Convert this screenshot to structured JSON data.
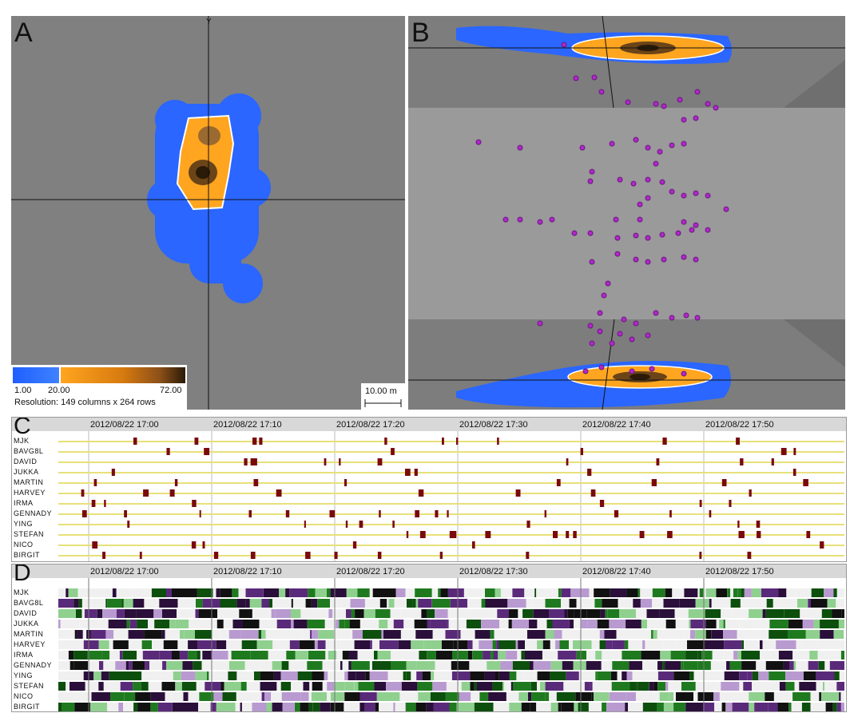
{
  "panels": {
    "a": {
      "label": "A",
      "axis_y": "Y"
    },
    "b": {
      "label": "B"
    },
    "c": {
      "label": "C"
    },
    "d": {
      "label": "D"
    }
  },
  "colorbar": {
    "min_label": "1.00",
    "mid_label": "20.00",
    "max_label": "72.00",
    "resolution": "Resolution: 149 columns x 264 rows",
    "colors": {
      "low": "#1f5fff",
      "mid": "#ff9f1a",
      "high": "#2a1a08"
    }
  },
  "scale_bar": {
    "label": "10.00 m"
  },
  "timeline": {
    "ticks": [
      "2012/08/22 17:00",
      "2012/08/22 17:10",
      "2012/08/22 17:20",
      "2012/08/22 17:30",
      "2012/08/22 17:40",
      "2012/08/22 17:50"
    ],
    "names_c": [
      "MJK",
      "BAVG8L",
      "DAVID",
      "JUKKA",
      "MARTIN",
      "HARVEY",
      "IRMA",
      "GENNADY",
      "YING",
      "STEFAN",
      "NICO",
      "BIRGIT"
    ],
    "names_d": [
      "MJK",
      "BAVG8L",
      "DAVID",
      "JUKKA",
      "MARTIN",
      "HARVEY",
      "IRMA",
      "GENNADY",
      "YING",
      "STEFAN",
      "NICO",
      "BIRGIT"
    ],
    "colors": {
      "event": "#7a0a0a",
      "row_line": "#e8e07a",
      "green": "#1f7a1f",
      "purple": "#5a2a7a"
    }
  }
}
